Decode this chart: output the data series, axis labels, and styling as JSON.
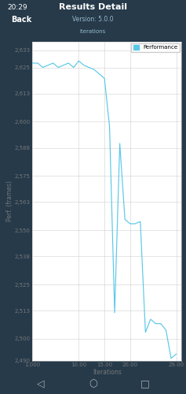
{
  "title": "Results Detail",
  "subtitle": "Version: 5.0.0",
  "header_label": "Iterations",
  "xlabel": "Iterations",
  "ylabel": "Perf. (frames)",
  "legend_label": "Performance",
  "legend_color": "#5bc8e8",
  "line_color": "#5bc8e8",
  "background_color": "#ffffff",
  "panel_bg": "#263a4a",
  "ylim": [
    2490,
    2637
  ],
  "xlim": [
    1,
    30
  ],
  "yticks": [
    2490,
    2500,
    2513,
    2525,
    2538,
    2550,
    2563,
    2575,
    2588,
    2600,
    2613,
    2625,
    2633
  ],
  "xticks": [
    1.0,
    10.0,
    15.0,
    20.0,
    29.0
  ],
  "xticklabels": [
    "1.000",
    "10.00",
    "15.00",
    "20.00",
    "29.00"
  ],
  "iterations": [
    1,
    2,
    3,
    4,
    5,
    6,
    7,
    8,
    9,
    10,
    11,
    12,
    13,
    14,
    15,
    16,
    17,
    18,
    19,
    20,
    21,
    22,
    23,
    24,
    25,
    26,
    27,
    28,
    29
  ],
  "values": [
    2627,
    2627,
    2625,
    2626,
    2627,
    2625,
    2626,
    2627,
    2625,
    2628,
    2626,
    2625,
    2624,
    2622,
    2620,
    2598,
    2512,
    2590,
    2555,
    2553,
    2553,
    2554,
    2503,
    2509,
    2507,
    2507,
    2504,
    2491,
    2493
  ]
}
